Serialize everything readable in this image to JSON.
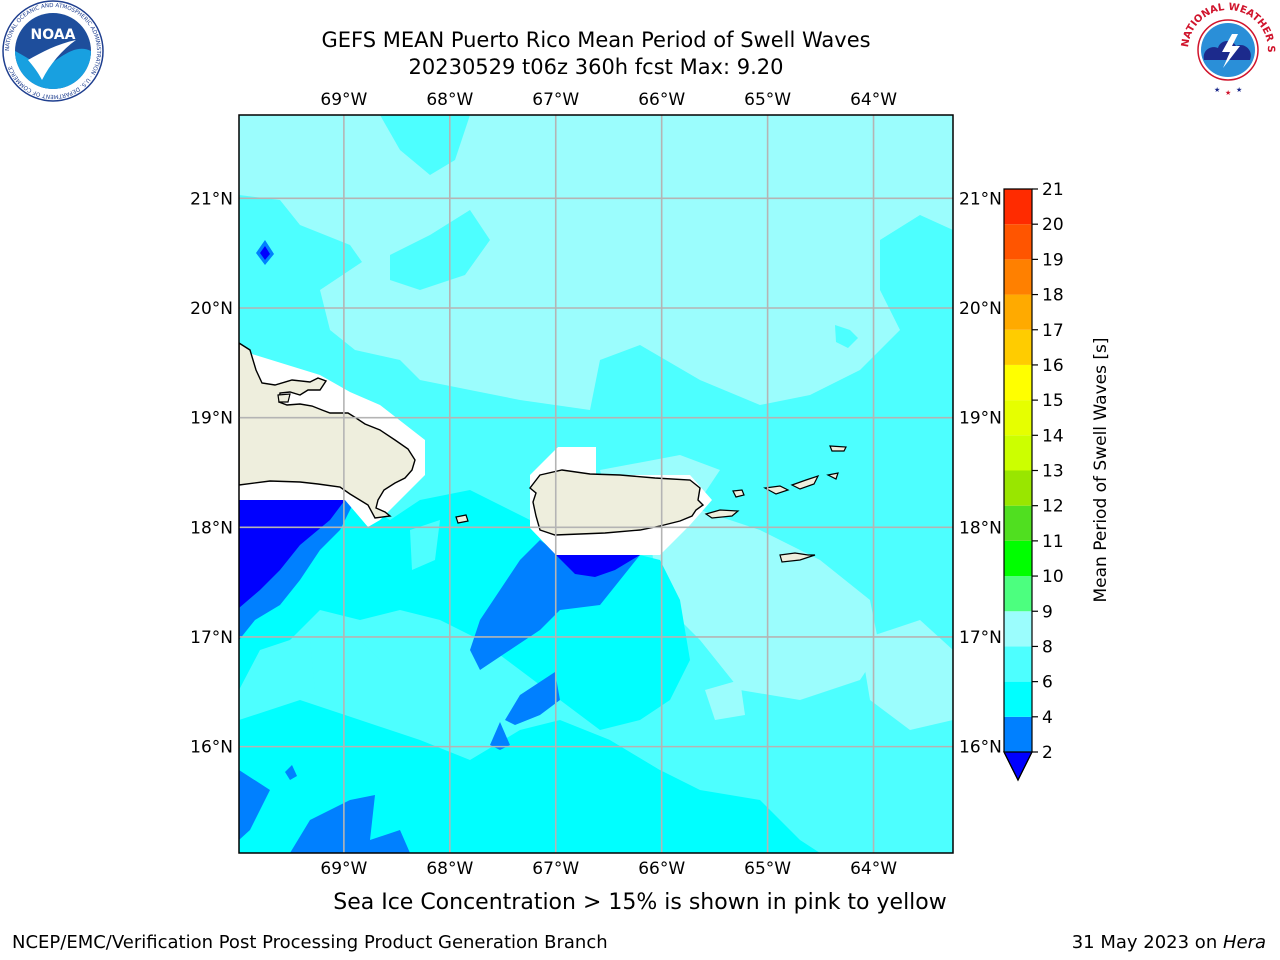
{
  "title": {
    "line1": "GEFS MEAN Puerto Rico Mean Period of Swell Waves",
    "line2": "20230529 t06z 360h fcst   Max: 9.20"
  },
  "map": {
    "lon_labels": [
      "69°W",
      "68°W",
      "67°W",
      "66°W",
      "65°W",
      "64°W"
    ],
    "lat_labels": [
      "21°N",
      "20°N",
      "19°N",
      "18°N",
      "17°N",
      "16°N"
    ],
    "lon_extent": [
      -69.99,
      -63.25
    ],
    "lat_extent": [
      15.03,
      21.76
    ],
    "land_color": "#eeeedd",
    "ocean_base_color": "#9bfdfd"
  },
  "colorbar": {
    "label": "Mean Period of Swell Waves [s]",
    "ticks": [
      "2",
      "4",
      "6",
      "8",
      "9",
      "10",
      "11",
      "12",
      "13",
      "14",
      "15",
      "16",
      "17",
      "18",
      "19",
      "20",
      "21"
    ],
    "colors": [
      "#0080ff",
      "#00ffff",
      "#4dffff",
      "#9bfdfd",
      "#4cff7f",
      "#00ff00",
      "#50df20",
      "#99e600",
      "#ccff00",
      "#e6ff00",
      "#ffff00",
      "#ffcc00",
      "#ffaa00",
      "#ff8000",
      "#ff5500",
      "#ff2b00",
      "#ff0000"
    ],
    "extend_color": "#0000ff"
  },
  "caption": "Sea Ice Concentration > 15% is shown in pink to yellow",
  "footer": {
    "left": "NCEP/EMC/Verification Post Processing Product Generation Branch",
    "date": "31 May 2023 on ",
    "host": "Hera"
  },
  "logos": {
    "noaa_text": "NOAA",
    "noaa_ring": "NATIONAL OCEANIC AND ATMOSPHERIC ADMINISTRATION · U.S. DEPARTMENT OF COMMERCE",
    "nws_ring": "NATIONAL WEATHER SERVICE"
  }
}
